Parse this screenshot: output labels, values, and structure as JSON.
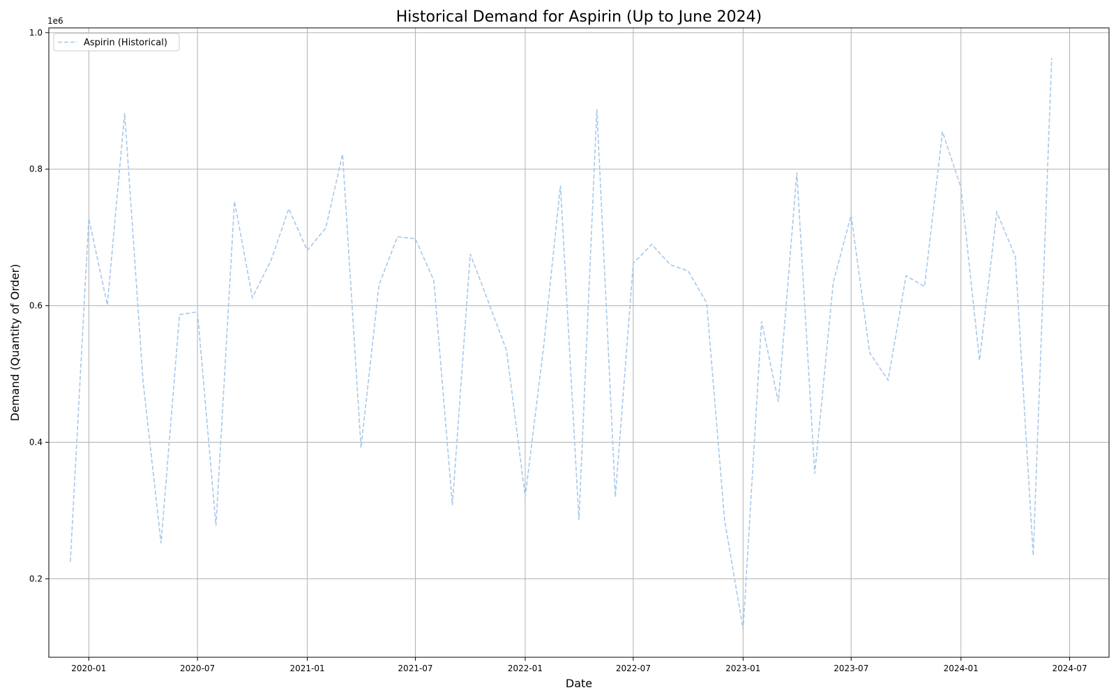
{
  "chart_data": {
    "type": "line",
    "title": "Historical Demand for Aspirin (Up to June 2024)",
    "xlabel": "Date",
    "ylabel": "Demand (Quantity of Order)",
    "y_offset_label": "1e6",
    "ylim": [
      0.085,
      1.007
    ],
    "xlim": [
      "2019-10-26",
      "2024-09-05"
    ],
    "grid": true,
    "legend_position": "upper left",
    "x_ticks": [
      "2020-01",
      "2020-07",
      "2021-01",
      "2021-07",
      "2022-01",
      "2022-07",
      "2023-01",
      "2023-07",
      "2024-01",
      "2024-07"
    ],
    "y_ticks": [
      "0.2",
      "0.4",
      "0.6",
      "0.8",
      "1.0"
    ],
    "x": [
      "2019-12-01",
      "2020-01-01",
      "2020-02-01",
      "2020-03-01",
      "2020-04-01",
      "2020-05-01",
      "2020-06-01",
      "2020-07-01",
      "2020-08-01",
      "2020-09-01",
      "2020-10-01",
      "2020-11-01",
      "2020-12-01",
      "2021-01-01",
      "2021-02-01",
      "2021-03-01",
      "2021-04-01",
      "2021-05-01",
      "2021-06-01",
      "2021-07-01",
      "2021-08-01",
      "2021-09-01",
      "2021-10-01",
      "2021-11-01",
      "2021-12-01",
      "2022-01-01",
      "2022-02-01",
      "2022-03-01",
      "2022-04-01",
      "2022-05-01",
      "2022-06-01",
      "2022-07-01",
      "2022-08-01",
      "2022-09-01",
      "2022-10-01",
      "2022-11-01",
      "2022-12-01",
      "2023-01-01",
      "2023-02-01",
      "2023-03-01",
      "2023-04-01",
      "2023-05-01",
      "2023-06-01",
      "2023-07-01",
      "2023-08-01",
      "2023-09-01",
      "2023-10-01",
      "2023-11-01",
      "2023-12-01",
      "2024-01-01",
      "2024-02-01",
      "2024-03-01",
      "2024-04-01",
      "2024-05-01",
      "2024-06-01"
    ],
    "series": [
      {
        "name": "Aspirin (Historical)",
        "color": "#a6c8ea",
        "line_style": "dashed",
        "values": [
          0.225,
          0.728,
          0.601,
          0.882,
          0.488,
          0.252,
          0.587,
          0.591,
          0.278,
          0.753,
          0.612,
          0.666,
          0.742,
          0.681,
          0.714,
          0.822,
          0.392,
          0.63,
          0.701,
          0.698,
          0.637,
          0.308,
          0.676,
          0.604,
          0.534,
          0.32,
          0.541,
          0.776,
          0.286,
          0.888,
          0.32,
          0.662,
          0.69,
          0.66,
          0.651,
          0.604,
          0.286,
          0.126,
          0.577,
          0.459,
          0.795,
          0.354,
          0.634,
          0.733,
          0.531,
          0.491,
          0.644,
          0.628,
          0.855,
          0.773,
          0.52,
          0.737,
          0.672,
          0.234,
          0.963
        ]
      }
    ]
  }
}
